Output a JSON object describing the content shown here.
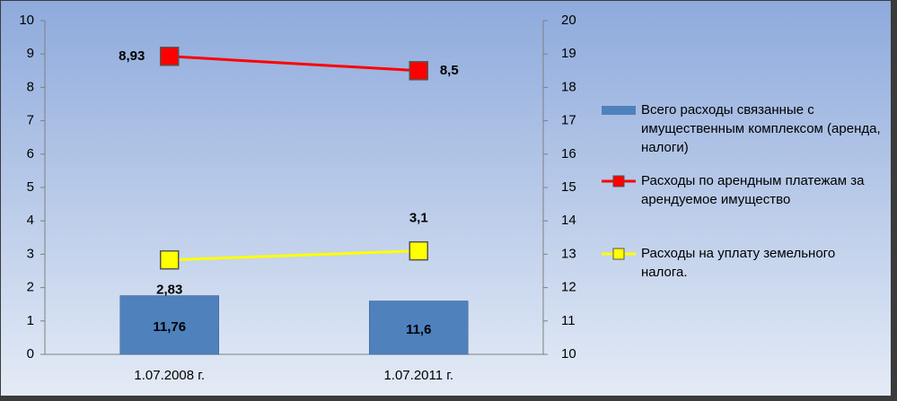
{
  "chart_data": {
    "type": "bar",
    "categories": [
      "1.07.2008 г.",
      "1.07.2011 г."
    ],
    "series": [
      {
        "name": "Всего расходы связанные с имущественным комплексом (аренда, налоги)",
        "type": "bar",
        "axis": "y2",
        "color": "#4f81bd",
        "values": [
          11.76,
          11.6
        ],
        "value_labels": [
          "11,76",
          "11,6"
        ]
      },
      {
        "name": "Расходы по арендным платежам за арендуемое имущество",
        "type": "line",
        "color": "#ff0000",
        "values": [
          8.93,
          8.5
        ],
        "value_labels": [
          "8,93",
          "8,5"
        ]
      },
      {
        "name": "Расходы на уплату земельного налога.",
        "type": "line",
        "color": "#ffff00",
        "values": [
          2.83,
          3.1
        ],
        "value_labels": [
          "2,83",
          "3,1"
        ]
      }
    ],
    "ylim": [
      0,
      10
    ],
    "yticks": [
      0,
      1,
      2,
      3,
      4,
      5,
      6,
      7,
      8,
      9,
      10
    ],
    "y2lim": [
      10,
      20
    ],
    "y2ticks": [
      10,
      11,
      12,
      13,
      14,
      15,
      16,
      17,
      18,
      19,
      20
    ],
    "grid": false,
    "legend": "right"
  }
}
